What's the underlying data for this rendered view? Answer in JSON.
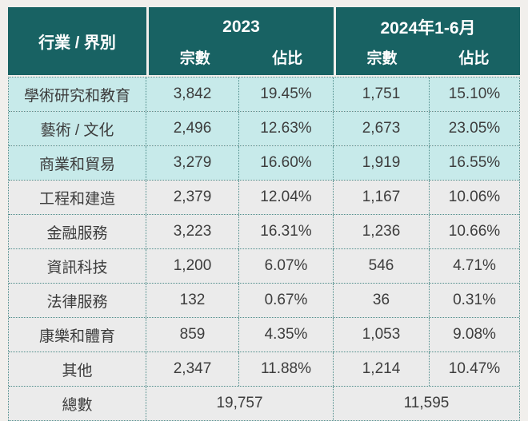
{
  "table": {
    "header": {
      "row_label": "行業 / 界別",
      "group_2023": {
        "year": "2023",
        "cases_label": "宗數",
        "share_label": "佔比"
      },
      "group_2024": {
        "year": "2024年1-6月",
        "cases_label": "宗數",
        "share_label": "佔比"
      }
    },
    "rows": [
      {
        "label": "學術研究和教育",
        "c2023": "3,842",
        "p2023": "19.45%",
        "c2024": "1,751",
        "p2024": "15.10%"
      },
      {
        "label": "藝術 / 文化",
        "c2023": "2,496",
        "p2023": "12.63%",
        "c2024": "2,673",
        "p2024": "23.05%"
      },
      {
        "label": "商業和貿易",
        "c2023": "3,279",
        "p2023": "16.60%",
        "c2024": "1,919",
        "p2024": "16.55%"
      },
      {
        "label": "工程和建造",
        "c2023": "2,379",
        "p2023": "12.04%",
        "c2024": "1,167",
        "p2024": "10.06%"
      },
      {
        "label": "金融服務",
        "c2023": "3,223",
        "p2023": "16.31%",
        "c2024": "1,236",
        "p2024": "10.66%"
      },
      {
        "label": "資訊科技",
        "c2023": "1,200",
        "p2023": "6.07%",
        "c2024": "546",
        "p2024": "4.71%"
      },
      {
        "label": "法律服務",
        "c2023": "132",
        "p2023": "0.67%",
        "c2024": "36",
        "p2024": "0.31%"
      },
      {
        "label": "康樂和體育",
        "c2023": "859",
        "p2023": "4.35%",
        "c2024": "1,053",
        "p2024": "9.08%"
      },
      {
        "label": "其他",
        "c2023": "2,347",
        "p2023": "11.88%",
        "c2024": "1,214",
        "p2024": "10.47%"
      }
    ],
    "total": {
      "label": "總數",
      "t2023": "19,757",
      "t2024": "11,595"
    }
  },
  "colors": {
    "header_teal": "#186263",
    "header_text": "#ffffff",
    "row_mint": "#c7eaea",
    "row_gray": "#ebebeb",
    "border_dotted": "#4e8c8a",
    "body_text": "#3d3d3d",
    "page_background": "#f1efec"
  },
  "chart_data": {
    "type": "table",
    "title": "",
    "columns": [
      "行業 / 界別",
      "2023 宗數",
      "2023 佔比",
      "2024年1-6月 宗數",
      "2024年1-6月 佔比"
    ],
    "rows": [
      [
        "學術研究和教育",
        3842,
        "19.45%",
        1751,
        "15.10%"
      ],
      [
        "藝術 / 文化",
        2496,
        "12.63%",
        2673,
        "23.05%"
      ],
      [
        "商業和貿易",
        3279,
        "16.60%",
        1919,
        "16.55%"
      ],
      [
        "工程和建造",
        2379,
        "12.04%",
        1167,
        "10.06%"
      ],
      [
        "金融服務",
        3223,
        "16.31%",
        1236,
        "10.66%"
      ],
      [
        "資訊科技",
        1200,
        "6.07%",
        546,
        "4.71%"
      ],
      [
        "法律服務",
        132,
        "0.67%",
        36,
        "0.31%"
      ],
      [
        "康樂和體育",
        859,
        "4.35%",
        1053,
        "9.08%"
      ],
      [
        "其他",
        2347,
        "11.88%",
        1214,
        "10.47%"
      ]
    ],
    "totals": {
      "label": "總數",
      "2023": 19757,
      "2024年1-6月": 11595
    }
  }
}
